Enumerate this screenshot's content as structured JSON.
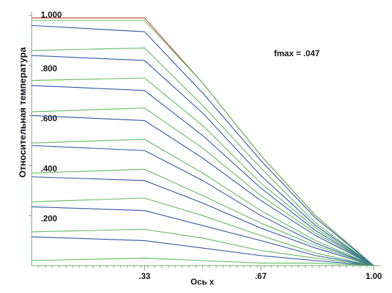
{
  "chart_data": {
    "type": "line",
    "x_label": "Ось x",
    "y_label": "Относительная температура",
    "annotation": "fmax = .047",
    "x": [
      0,
      0.33,
      0.5,
      0.67,
      0.83,
      1.0
    ],
    "xlim": [
      0,
      1
    ],
    "ylim": [
      0,
      1
    ],
    "xticks": [
      {
        "value": 0.33,
        "label": ".33"
      },
      {
        "value": 0.67,
        "label": ".67"
      },
      {
        "value": 1.0,
        "label": "1.00"
      }
    ],
    "yticks": [
      {
        "value": 1.0,
        "label": "1.000"
      },
      {
        "value": 0.8,
        "label": ".800"
      },
      {
        "value": 0.6,
        "label": ".600"
      },
      {
        "value": 0.4,
        "label": ".400"
      },
      {
        "value": 0.2,
        "label": ".200"
      }
    ],
    "series": [
      {
        "color": "#c0392b",
        "values": [
          0.99,
          0.99,
          0.73,
          0.44,
          0.2,
          0
        ]
      },
      {
        "color": "#5cb85c",
        "values": [
          0.98,
          0.98,
          0.73,
          0.44,
          0.2,
          0
        ]
      },
      {
        "color": "#2c4fa3",
        "values": [
          0.96,
          0.935,
          0.69,
          0.42,
          0.19,
          0
        ]
      },
      {
        "color": "#5cb85c",
        "values": [
          0.86,
          0.87,
          0.64,
          0.39,
          0.17,
          0
        ]
      },
      {
        "color": "#2c4fa3",
        "values": [
          0.84,
          0.82,
          0.61,
          0.36,
          0.16,
          0
        ]
      },
      {
        "color": "#5cb85c",
        "values": [
          0.74,
          0.75,
          0.56,
          0.33,
          0.15,
          0
        ]
      },
      {
        "color": "#2c4fa3",
        "values": [
          0.72,
          0.7,
          0.52,
          0.31,
          0.14,
          0
        ]
      },
      {
        "color": "#5cb85c",
        "values": [
          0.615,
          0.63,
          0.47,
          0.28,
          0.13,
          0
        ]
      },
      {
        "color": "#2c4fa3",
        "values": [
          0.6,
          0.58,
          0.43,
          0.26,
          0.12,
          0
        ]
      },
      {
        "color": "#5cb85c",
        "values": [
          0.49,
          0.505,
          0.37,
          0.22,
          0.1,
          0
        ]
      },
      {
        "color": "#2c4fa3",
        "values": [
          0.48,
          0.46,
          0.34,
          0.2,
          0.09,
          0
        ]
      },
      {
        "color": "#5cb85c",
        "values": [
          0.37,
          0.385,
          0.28,
          0.17,
          0.08,
          0
        ]
      },
      {
        "color": "#2c4fa3",
        "values": [
          0.355,
          0.34,
          0.25,
          0.15,
          0.07,
          0
        ]
      },
      {
        "color": "#5cb85c",
        "values": [
          0.255,
          0.27,
          0.2,
          0.12,
          0.05,
          0
        ]
      },
      {
        "color": "#2c4fa3",
        "values": [
          0.235,
          0.22,
          0.16,
          0.1,
          0.04,
          0
        ]
      },
      {
        "color": "#5cb85c",
        "values": [
          0.135,
          0.145,
          0.11,
          0.06,
          0.03,
          0
        ]
      },
      {
        "color": "#2c4fa3",
        "values": [
          0.115,
          0.1,
          0.07,
          0.04,
          0.02,
          0
        ]
      },
      {
        "color": "#5cb85c",
        "values": [
          0.02,
          0.03,
          0.02,
          0.01,
          0.01,
          0
        ]
      }
    ]
  }
}
